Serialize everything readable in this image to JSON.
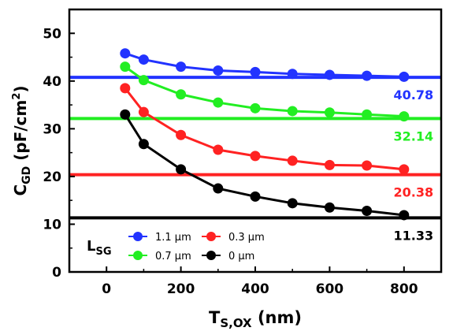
{
  "chart_data": {
    "type": "line",
    "xlabel": {
      "main": "T",
      "sub": "S,OX",
      "unit": " (nm)"
    },
    "ylabel": {
      "main": "C",
      "sub": "GD",
      "unit": " (pF/cm",
      "sup": "2",
      "close": ")"
    },
    "xlim": [
      -100,
      900
    ],
    "ylim": [
      0,
      55
    ],
    "xticks": [
      0,
      200,
      400,
      600,
      800
    ],
    "yticks": [
      0,
      10,
      20,
      30,
      40,
      50
    ],
    "grid": false,
    "legend": {
      "title_main": "L",
      "title_sub": "SG",
      "placement": "bottom-left"
    },
    "x": [
      50,
      100,
      200,
      300,
      400,
      500,
      600,
      700,
      800
    ],
    "series": [
      {
        "name": "1.1 μm",
        "color": "#2233ff",
        "values": [
          45.8,
          44.5,
          43.0,
          42.2,
          41.9,
          41.5,
          41.3,
          41.1,
          40.9
        ],
        "ref": 40.78,
        "ref_label": "40.78"
      },
      {
        "name": "0.7 μm",
        "color": "#22ee22",
        "values": [
          43.0,
          40.2,
          37.2,
          35.5,
          34.3,
          33.7,
          33.4,
          33.0,
          32.6
        ],
        "ref": 32.14,
        "ref_label": "32.14"
      },
      {
        "name": "0.3 μm",
        "color": "#ff2222",
        "values": [
          38.5,
          33.5,
          28.7,
          25.6,
          24.3,
          23.3,
          22.4,
          22.3,
          21.5
        ],
        "ref": 20.38,
        "ref_label": "20.38"
      },
      {
        "name": "0 μm",
        "color": "#000000",
        "values": [
          33.0,
          26.8,
          21.5,
          17.5,
          15.8,
          14.4,
          13.5,
          12.8,
          11.9
        ],
        "ref": 11.33,
        "ref_label": "11.33"
      }
    ]
  }
}
